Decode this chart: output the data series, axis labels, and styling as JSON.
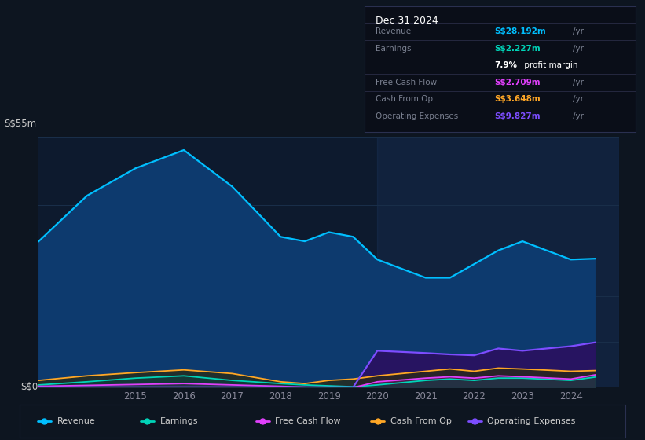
{
  "background_color": "#0d1520",
  "plot_bg_color": "#0d1a2e",
  "grid_color": "#1a2f4a",
  "years": [
    2013,
    2014,
    2015,
    2016,
    2017,
    2018,
    2018.5,
    2019,
    2019.5,
    2020,
    2021,
    2021.5,
    2022,
    2022.5,
    2023,
    2024,
    2024.5
  ],
  "revenue": [
    32,
    42,
    48,
    52,
    44,
    33,
    32,
    34,
    33,
    28,
    24,
    24,
    27,
    30,
    32,
    28,
    28.192
  ],
  "earnings": [
    0.5,
    1.2,
    2.0,
    2.5,
    1.5,
    0.8,
    0.5,
    0.3,
    0.1,
    0.5,
    1.5,
    1.8,
    1.5,
    2.0,
    2.0,
    1.5,
    2.227
  ],
  "free_cash_flow": [
    0.2,
    0.4,
    0.6,
    0.8,
    0.5,
    0.2,
    0.0,
    -0.3,
    -0.1,
    1.2,
    2.0,
    2.3,
    2.0,
    2.5,
    2.3,
    1.8,
    2.709
  ],
  "cash_from_op": [
    1.5,
    2.5,
    3.2,
    3.8,
    3.0,
    1.2,
    0.8,
    1.5,
    1.8,
    2.5,
    3.5,
    4.0,
    3.5,
    4.2,
    4.0,
    3.5,
    3.648
  ],
  "operating_exp": [
    0.0,
    0.0,
    0.0,
    0.0,
    0.0,
    0.0,
    0.0,
    0.0,
    0.0,
    8.0,
    7.5,
    7.2,
    7.0,
    8.5,
    8.0,
    9.0,
    9.827
  ],
  "revenue_color": "#00bfff",
  "earnings_color": "#00d4b8",
  "fcf_color": "#e040fb",
  "cashop_color": "#ffa726",
  "opex_color": "#7c4dff",
  "revenue_fill": "#0d3a6e",
  "earnings_fill": "#0d4040",
  "fcf_fill": "#5a1a5a",
  "cashop_fill": "#2a2a10",
  "opex_fill": "#2a1060",
  "ylim_max": 55,
  "infobox": {
    "title": "Dec 31 2024",
    "rows": [
      {
        "label": "Revenue",
        "value": "S$28.192m",
        "color": "#00bfff",
        "yr": true
      },
      {
        "label": "Earnings",
        "value": "S$2.227m",
        "color": "#00d4b8",
        "yr": true
      },
      {
        "label": "",
        "value": "7.9%",
        "suffix": " profit margin",
        "color": "#ffffff",
        "bold_val": true,
        "yr": false
      },
      {
        "label": "Free Cash Flow",
        "value": "S$2.709m",
        "color": "#e040fb",
        "yr": true
      },
      {
        "label": "Cash From Op",
        "value": "S$3.648m",
        "color": "#ffa726",
        "yr": true
      },
      {
        "label": "Operating Expenses",
        "value": "S$9.827m",
        "color": "#7c4dff",
        "yr": true
      }
    ]
  },
  "legend": [
    {
      "label": "Revenue",
      "color": "#00bfff"
    },
    {
      "label": "Earnings",
      "color": "#00d4b8"
    },
    {
      "label": "Free Cash Flow",
      "color": "#e040fb"
    },
    {
      "label": "Cash From Op",
      "color": "#ffa726"
    },
    {
      "label": "Operating Expenses",
      "color": "#7c4dff"
    }
  ]
}
